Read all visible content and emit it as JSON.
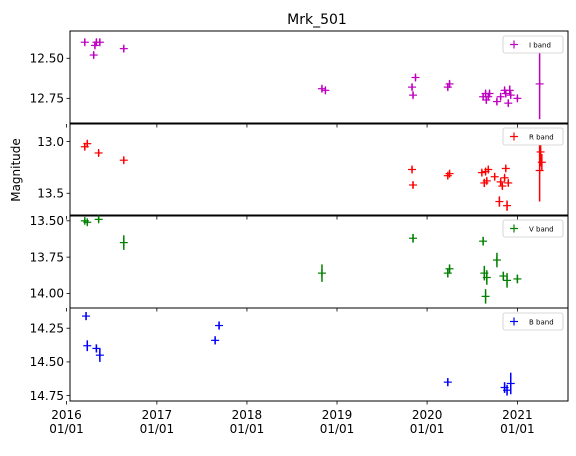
{
  "chart_data": {
    "type": "scatter",
    "title": "Mrk_501",
    "ylabel": "Magnitude",
    "xlabel": "",
    "y_inverted": true,
    "x_axis": {
      "type": "date",
      "range": [
        "2016-01-15",
        "2021-07-25"
      ],
      "ticks": [
        {
          "date": "2016-01-01",
          "label": [
            "2016",
            "01/01"
          ]
        },
        {
          "date": "2017-01-01",
          "label": [
            "2017",
            "01/01"
          ]
        },
        {
          "date": "2018-01-01",
          "label": [
            "2018",
            "01/01"
          ]
        },
        {
          "date": "2019-01-01",
          "label": [
            "2019",
            "01/01"
          ]
        },
        {
          "date": "2020-01-01",
          "label": [
            "2020",
            "01/01"
          ]
        },
        {
          "date": "2021-01-01",
          "label": [
            "2021",
            "01/01"
          ]
        }
      ]
    },
    "panels": [
      {
        "band": "I band",
        "legend": "I band",
        "color": "#c000c0",
        "legend_position": "top-right",
        "ylim": [
          12.91,
          12.33
        ],
        "yticks": [
          {
            "v": 12.5,
            "label": "12.50"
          },
          {
            "v": 12.75,
            "label": "12.75"
          }
        ],
        "points": [
          {
            "date": "2016-03-15",
            "y": 12.4,
            "err": 0.02
          },
          {
            "date": "2016-04-20",
            "y": 12.48,
            "err": 0.02
          },
          {
            "date": "2016-04-25",
            "y": 12.42,
            "err": 0.02
          },
          {
            "date": "2016-05-01",
            "y": 12.4,
            "err": 0.02
          },
          {
            "date": "2016-05-15",
            "y": 12.4,
            "err": 0.02
          },
          {
            "date": "2016-08-20",
            "y": 12.44,
            "err": 0.02
          },
          {
            "date": "2018-11-01",
            "y": 12.69,
            "err": 0.02
          },
          {
            "date": "2018-11-15",
            "y": 12.7,
            "err": 0.02
          },
          {
            "date": "2019-11-01",
            "y": 12.68,
            "err": 0.02
          },
          {
            "date": "2019-11-05",
            "y": 12.73,
            "err": 0.02
          },
          {
            "date": "2019-11-15",
            "y": 12.62,
            "err": 0.02
          },
          {
            "date": "2020-03-25",
            "y": 12.68,
            "err": 0.02
          },
          {
            "date": "2020-04-01",
            "y": 12.66,
            "err": 0.02
          },
          {
            "date": "2020-08-15",
            "y": 12.74,
            "err": 0.02
          },
          {
            "date": "2020-08-25",
            "y": 12.72,
            "err": 0.02
          },
          {
            "date": "2020-08-28",
            "y": 12.76,
            "err": 0.02
          },
          {
            "date": "2020-09-05",
            "y": 12.74,
            "err": 0.02
          },
          {
            "date": "2020-09-10",
            "y": 12.72,
            "err": 0.02
          },
          {
            "date": "2020-10-10",
            "y": 12.77,
            "err": 0.02
          },
          {
            "date": "2020-10-25",
            "y": 12.74,
            "err": 0.02
          },
          {
            "date": "2020-11-10",
            "y": 12.7,
            "err": 0.02
          },
          {
            "date": "2020-11-15",
            "y": 12.72,
            "err": 0.02
          },
          {
            "date": "2020-11-25",
            "y": 12.78,
            "err": 0.02
          },
          {
            "date": "2020-12-01",
            "y": 12.7,
            "err": 0.03
          },
          {
            "date": "2020-12-05",
            "y": 12.73,
            "err": 0.02
          },
          {
            "date": "2021-01-01",
            "y": 12.75,
            "err": 0.02
          },
          {
            "date": "2021-04-01",
            "y": 12.66,
            "err": 0.22
          }
        ]
      },
      {
        "band": "R band",
        "legend": "R band",
        "color": "#ff0000",
        "legend_position": "top-right",
        "ylim": [
          13.72,
          12.82
        ],
        "yticks": [
          {
            "v": 13.0,
            "label": "13.0"
          },
          {
            "v": 13.5,
            "label": "13.5"
          }
        ],
        "points": [
          {
            "date": "2016-03-15",
            "y": 13.05,
            "err": 0.03
          },
          {
            "date": "2016-03-25",
            "y": 13.02,
            "err": 0.03
          },
          {
            "date": "2016-05-10",
            "y": 13.11,
            "err": 0.03
          },
          {
            "date": "2016-08-20",
            "y": 13.18,
            "err": 0.03
          },
          {
            "date": "2019-11-01",
            "y": 13.27,
            "err": 0.03
          },
          {
            "date": "2019-11-05",
            "y": 13.42,
            "err": 0.03
          },
          {
            "date": "2020-03-25",
            "y": 13.33,
            "err": 0.03
          },
          {
            "date": "2020-04-01",
            "y": 13.31,
            "err": 0.03
          },
          {
            "date": "2020-08-10",
            "y": 13.3,
            "err": 0.03
          },
          {
            "date": "2020-08-20",
            "y": 13.4,
            "err": 0.04
          },
          {
            "date": "2020-08-25",
            "y": 13.29,
            "err": 0.03
          },
          {
            "date": "2020-08-30",
            "y": 13.38,
            "err": 0.03
          },
          {
            "date": "2020-09-05",
            "y": 13.27,
            "err": 0.03
          },
          {
            "date": "2020-10-01",
            "y": 13.34,
            "err": 0.03
          },
          {
            "date": "2020-10-20",
            "y": 13.58,
            "err": 0.05
          },
          {
            "date": "2020-10-25",
            "y": 13.39,
            "err": 0.03
          },
          {
            "date": "2020-11-01",
            "y": 13.43,
            "err": 0.03
          },
          {
            "date": "2020-11-10",
            "y": 13.35,
            "err": 0.03
          },
          {
            "date": "2020-11-15",
            "y": 13.26,
            "err": 0.03
          },
          {
            "date": "2020-11-20",
            "y": 13.62,
            "err": 0.05
          },
          {
            "date": "2020-11-25",
            "y": 13.4,
            "err": 0.03
          },
          {
            "date": "2021-04-01",
            "y": 13.28,
            "err": 0.3
          },
          {
            "date": "2021-04-05",
            "y": 13.1,
            "err": 0.14
          },
          {
            "date": "2021-04-10",
            "y": 13.2,
            "err": 0.08
          }
        ]
      },
      {
        "band": "V band",
        "legend": "V band",
        "color": "#008000",
        "legend_position": "top-right",
        "ylim": [
          14.1,
          13.46
        ],
        "yticks": [
          {
            "v": 13.5,
            "label": "13.50"
          },
          {
            "v": 13.75,
            "label": "13.75"
          },
          {
            "v": 14.0,
            "label": "14.00"
          }
        ],
        "points": [
          {
            "date": "2016-03-15",
            "y": 13.5,
            "err": 0.02
          },
          {
            "date": "2016-03-25",
            "y": 13.51,
            "err": 0.02
          },
          {
            "date": "2016-05-10",
            "y": 13.49,
            "err": 0.02
          },
          {
            "date": "2016-08-20",
            "y": 13.65,
            "err": 0.05
          },
          {
            "date": "2018-11-01",
            "y": 13.86,
            "err": 0.06
          },
          {
            "date": "2019-11-05",
            "y": 13.62,
            "err": 0.03
          },
          {
            "date": "2020-03-25",
            "y": 13.86,
            "err": 0.03
          },
          {
            "date": "2020-04-01",
            "y": 13.83,
            "err": 0.03
          },
          {
            "date": "2020-08-15",
            "y": 13.64,
            "err": 0.03
          },
          {
            "date": "2020-08-20",
            "y": 13.86,
            "err": 0.05
          },
          {
            "date": "2020-08-25",
            "y": 14.02,
            "err": 0.05
          },
          {
            "date": "2020-08-30",
            "y": 13.89,
            "err": 0.05
          },
          {
            "date": "2020-10-10",
            "y": 13.77,
            "err": 0.05
          },
          {
            "date": "2020-11-05",
            "y": 13.88,
            "err": 0.03
          },
          {
            "date": "2020-11-20",
            "y": 13.91,
            "err": 0.05
          },
          {
            "date": "2021-01-01",
            "y": 13.9,
            "err": 0.03
          }
        ]
      },
      {
        "band": "B band",
        "legend": "B band",
        "color": "#0000ff",
        "legend_position": "top-right",
        "ylim": [
          14.79,
          14.1
        ],
        "yticks": [
          {
            "v": 14.25,
            "label": "14.25"
          },
          {
            "v": 14.5,
            "label": "14.50"
          },
          {
            "v": 14.75,
            "label": "14.75"
          }
        ],
        "points": [
          {
            "date": "2016-03-20",
            "y": 14.16,
            "err": 0.03
          },
          {
            "date": "2016-03-25",
            "y": 14.38,
            "err": 0.04
          },
          {
            "date": "2016-05-01",
            "y": 14.4,
            "err": 0.03
          },
          {
            "date": "2016-05-15",
            "y": 14.45,
            "err": 0.05
          },
          {
            "date": "2017-08-25",
            "y": 14.34,
            "err": 0.03
          },
          {
            "date": "2017-09-10",
            "y": 14.23,
            "err": 0.03
          },
          {
            "date": "2020-03-25",
            "y": 14.65,
            "err": 0.03
          },
          {
            "date": "2020-11-10",
            "y": 14.69,
            "err": 0.04
          },
          {
            "date": "2020-11-20",
            "y": 14.71,
            "err": 0.04
          },
          {
            "date": "2020-12-05",
            "y": 14.66,
            "err": 0.08
          }
        ]
      }
    ]
  }
}
